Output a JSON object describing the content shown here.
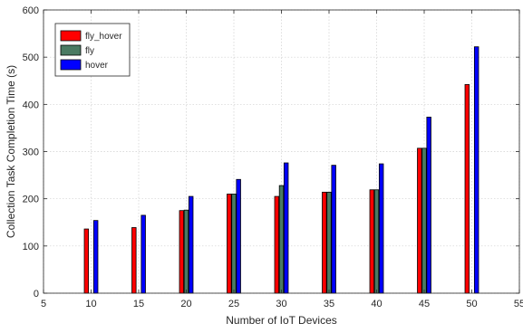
{
  "chart_data": {
    "type": "bar",
    "xlabel": "Number of IoT Devices",
    "ylabel": "Collection Task Completion Time (s)",
    "xlim": [
      5,
      55
    ],
    "ylim": [
      0,
      600
    ],
    "xticks": [
      5,
      10,
      15,
      20,
      25,
      30,
      35,
      40,
      45,
      50,
      55
    ],
    "yticks": [
      0,
      100,
      200,
      300,
      400,
      500,
      600
    ],
    "grid": true,
    "legend_position": "top-left",
    "categories": [
      10,
      15,
      20,
      25,
      30,
      35,
      40,
      45,
      50
    ],
    "series": [
      {
        "name": "fly_hover",
        "color": "#ff0000",
        "values": [
          136,
          139,
          175,
          210,
          205,
          214,
          219,
          307,
          442
        ]
      },
      {
        "name": "fly",
        "color": "#4a7a62",
        "values": [
          null,
          null,
          176,
          210,
          228,
          214,
          219,
          307,
          null
        ]
      },
      {
        "name": "hover",
        "color": "#0000ff",
        "values": [
          154,
          165,
          205,
          241,
          276,
          271,
          274,
          373,
          522
        ]
      }
    ]
  }
}
